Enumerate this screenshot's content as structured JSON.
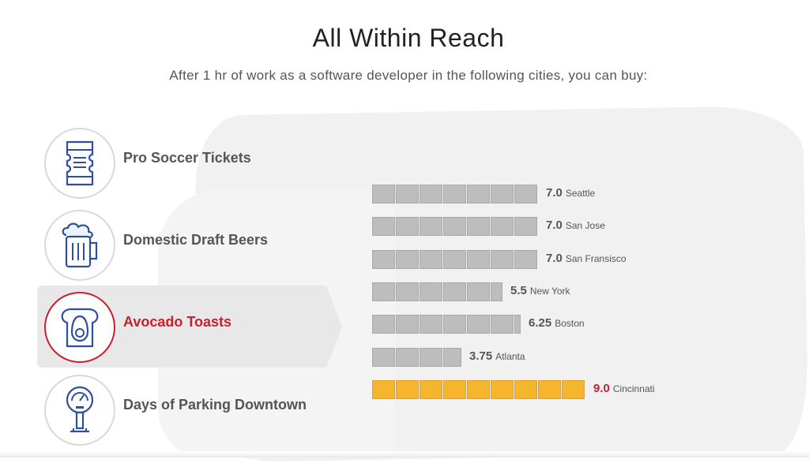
{
  "header": {
    "title": "All Within Reach",
    "subtitle": "After 1 hr of work as a software developer in the following cities, you can buy:"
  },
  "categories": [
    {
      "label": "Pro Soccer Tickets",
      "icon": "ticket-icon",
      "active": false
    },
    {
      "label": "Domestic Draft Beers",
      "icon": "beer-mug-icon",
      "active": false
    },
    {
      "label": "Avocado Toasts",
      "icon": "avocado-toast-icon",
      "active": true
    },
    {
      "label": "Days of Parking Downtown",
      "icon": "parking-meter-icon",
      "active": false
    }
  ],
  "colors": {
    "bar": "#bdbdbd",
    "highlight_bar": "#f5b52f",
    "accent": "#c8202f"
  },
  "chart_data": {
    "type": "bar",
    "orientation": "horizontal",
    "categories": [
      "Seattle",
      "San Jose",
      "San Fransisco",
      "New York",
      "Boston",
      "Atlanta",
      "Cincinnati"
    ],
    "values": [
      7.0,
      7.0,
      7.0,
      5.5,
      6.25,
      3.75,
      9.0
    ],
    "value_labels": [
      "7.0",
      "7.0",
      "7.0",
      "5.5",
      "6.25",
      "3.75",
      "9.0"
    ],
    "highlight": "Cincinnati",
    "grid": false
  }
}
